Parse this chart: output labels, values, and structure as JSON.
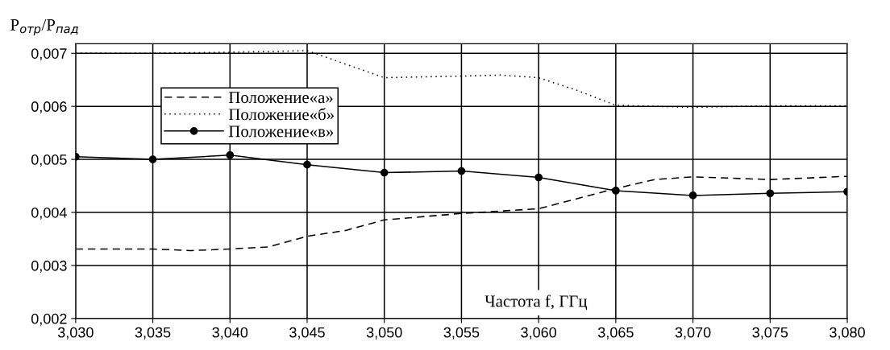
{
  "chart_data": {
    "type": "line",
    "ylabel": "P$_{отр}$/P$_{пад}$",
    "xlabel": "Частота f, ГГц",
    "xlim": [
      3.03,
      3.08
    ],
    "ylim": [
      0.002,
      0.00718
    ],
    "xticks": [
      {
        "value": 3.03,
        "label": "3,030"
      },
      {
        "value": 3.035,
        "label": "3,035"
      },
      {
        "value": 3.04,
        "label": "3,040"
      },
      {
        "value": 3.045,
        "label": "3,045"
      },
      {
        "value": 3.05,
        "label": "3,050"
      },
      {
        "value": 3.055,
        "label": "3,055"
      },
      {
        "value": 3.06,
        "label": "3,060"
      },
      {
        "value": 3.065,
        "label": "3,065"
      },
      {
        "value": 3.07,
        "label": "3,070"
      },
      {
        "value": 3.075,
        "label": "3,075"
      },
      {
        "value": 3.08,
        "label": "3,080"
      }
    ],
    "yticks": [
      {
        "value": 0.002,
        "label": "0,002"
      },
      {
        "value": 0.003,
        "label": "0,003"
      },
      {
        "value": 0.004,
        "label": "0,004"
      },
      {
        "value": 0.005,
        "label": "0,005"
      },
      {
        "value": 0.006,
        "label": "0,006"
      },
      {
        "value": 0.007,
        "label": "0,007"
      }
    ],
    "grid": true,
    "legend": "top left",
    "series": [
      {
        "name": "Положение«а»",
        "color": "#000000",
        "line_style": "dashed",
        "marker": "none",
        "x": [
          3.03,
          3.035,
          3.0375,
          3.04,
          3.0425,
          3.045,
          3.0475,
          3.05,
          3.055,
          3.06,
          3.065,
          3.0675,
          3.07,
          3.075,
          3.08
        ],
        "values": [
          0.00331,
          0.00331,
          0.00328,
          0.00331,
          0.00335,
          0.00355,
          0.00366,
          0.00386,
          0.00398,
          0.00407,
          0.00445,
          0.00462,
          0.00467,
          0.00462,
          0.00468
        ]
      },
      {
        "name": "Положение«б»",
        "color": "#000000",
        "line_style": "dotted",
        "marker": "none",
        "x": [
          3.03,
          3.035,
          3.04,
          3.045,
          3.05,
          3.055,
          3.0575,
          3.06,
          3.0625,
          3.065,
          3.07,
          3.075,
          3.08
        ],
        "values": [
          0.007,
          0.007,
          0.00702,
          0.00705,
          0.00654,
          0.00657,
          0.00659,
          0.00654,
          0.0063,
          0.00602,
          0.00598,
          0.00601,
          0.00601
        ]
      },
      {
        "name": "Положение«в»",
        "color": "#000000",
        "line_style": "solid",
        "marker": "circle",
        "x": [
          3.03,
          3.035,
          3.04,
          3.045,
          3.05,
          3.055,
          3.06,
          3.065,
          3.07,
          3.075,
          3.08
        ],
        "values": [
          0.00505,
          0.005,
          0.00508,
          0.0049,
          0.00475,
          0.00478,
          0.00466,
          0.00441,
          0.00432,
          0.00436,
          0.00439
        ]
      }
    ]
  }
}
